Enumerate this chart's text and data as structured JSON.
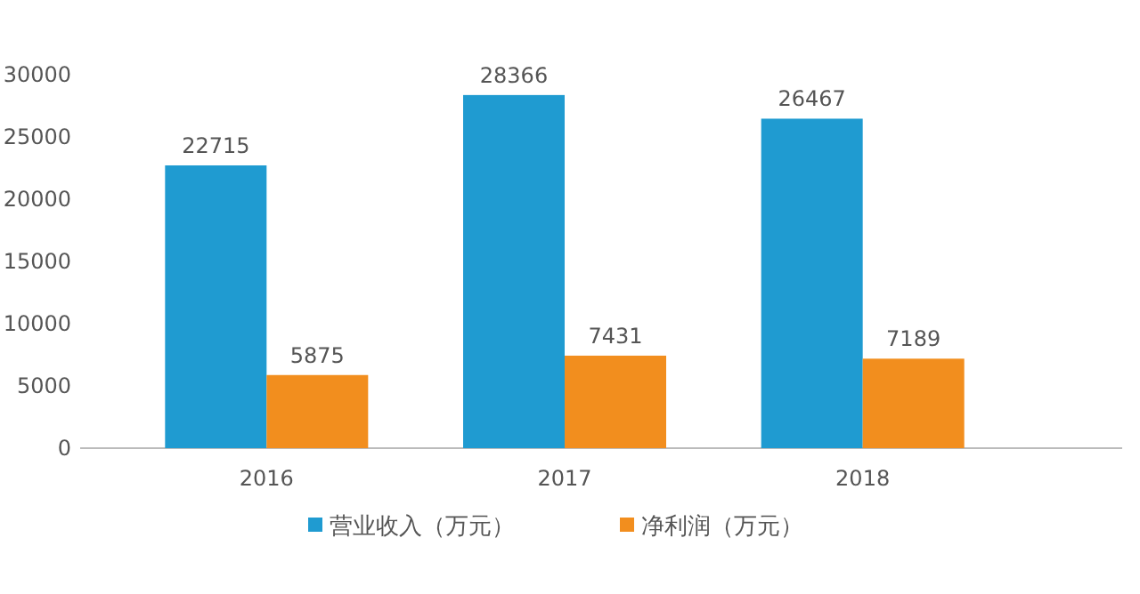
{
  "chart_data": {
    "type": "bar",
    "categories": [
      "2016",
      "2017",
      "2018"
    ],
    "series": [
      {
        "name": "营业收入（万元）",
        "color": "#1f9bd1",
        "values": [
          22715,
          28366,
          26467
        ]
      },
      {
        "name": "净利润（万元）",
        "color": "#f28e1e",
        "values": [
          5875,
          7431,
          7189
        ]
      }
    ],
    "ylim": [
      0,
      30000
    ],
    "yticks": [
      0,
      5000,
      10000,
      15000,
      20000,
      25000,
      30000
    ],
    "data_labels": true,
    "legend": "bottom",
    "grid": false
  }
}
